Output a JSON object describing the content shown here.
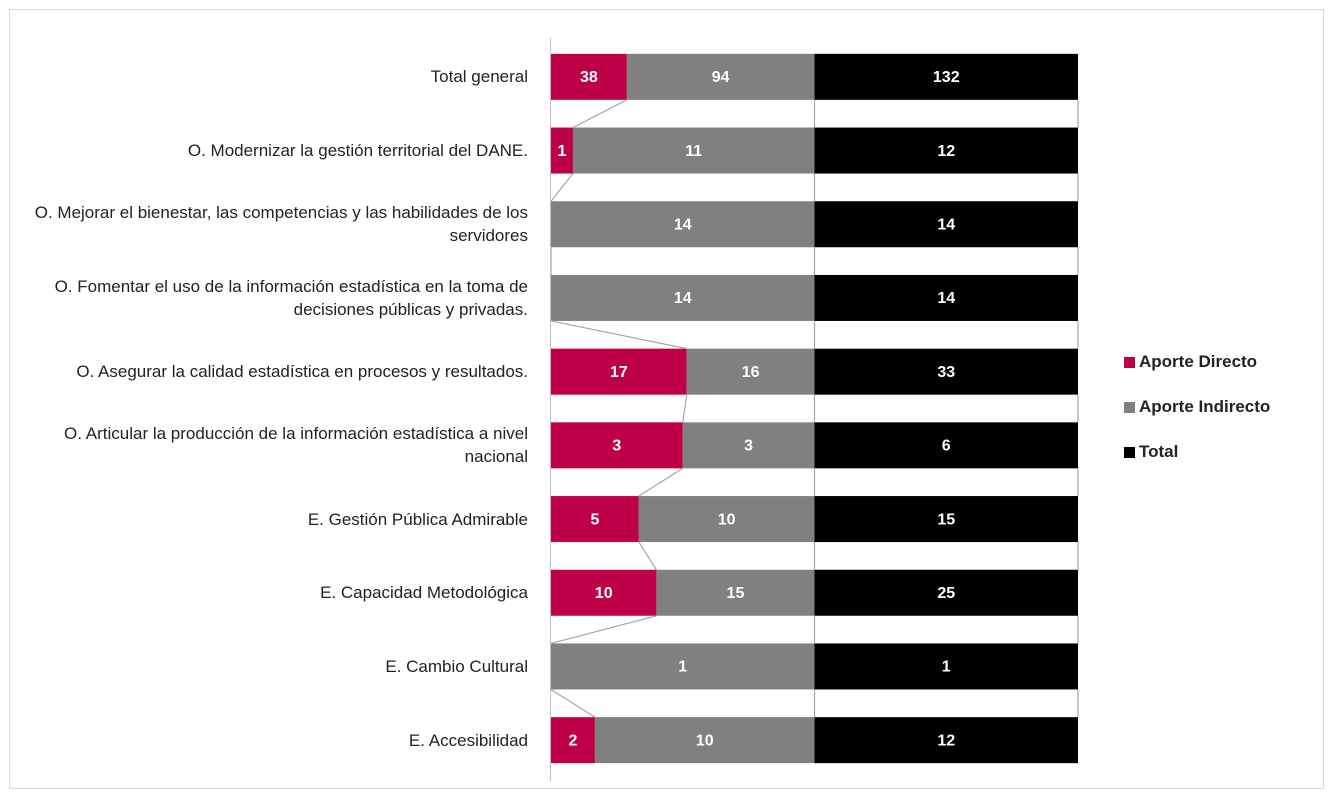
{
  "chart_data": {
    "type": "bar",
    "orientation": "horizontal",
    "stacking": "percent",
    "categories": [
      "Total general",
      "O. Modernizar la gestión territorial del DANE.",
      "O. Mejorar el bienestar, las competencias y las habilidades de los servidores",
      "O. Fomentar el uso de la información estadística en la toma de decisiones públicas y privadas.",
      "O. Asegurar la calidad estadística en procesos y resultados.",
      "O. Articular la producción de la información estadística a nivel nacional",
      "E. Gestión Pública Admirable",
      "E. Capacidad Metodológica",
      "E. Cambio Cultural",
      "E. Accesibilidad"
    ],
    "series": [
      {
        "name": "Aporte Directo",
        "color": "#be0049",
        "values": [
          38,
          1,
          0,
          0,
          17,
          3,
          5,
          10,
          0,
          2
        ]
      },
      {
        "name": "Aporte Indirecto",
        "color": "#808080",
        "values": [
          94,
          11,
          14,
          14,
          16,
          3,
          10,
          15,
          1,
          10
        ]
      },
      {
        "name": "Total",
        "color": "#000000",
        "values": [
          132,
          12,
          14,
          14,
          33,
          6,
          15,
          25,
          1,
          12
        ]
      }
    ],
    "data_labels": true,
    "series_lines": true,
    "legend": "right"
  }
}
